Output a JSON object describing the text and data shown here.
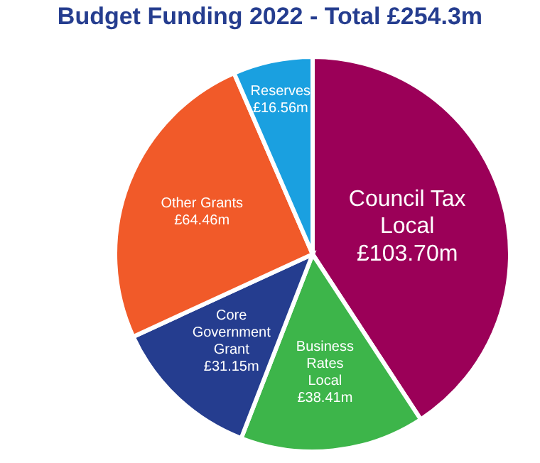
{
  "chart_data": {
    "type": "pie",
    "title": "Budget Funding 2022 - Total £254.3m",
    "categories": [
      "Council Tax Local",
      "Business Rates Local",
      "Core Government Grant",
      "Other Grants",
      "Reserves"
    ],
    "values": [
      103.7,
      38.41,
      31.15,
      64.46,
      16.56
    ],
    "colors": [
      "#9b0058",
      "#3db54a",
      "#253d8f",
      "#f15a29",
      "#1aa0e0"
    ],
    "value_labels": [
      "£103.70m",
      "£38.41m",
      "£31.15m",
      "£64.46m",
      "£16.56m"
    ],
    "legend": false
  }
}
